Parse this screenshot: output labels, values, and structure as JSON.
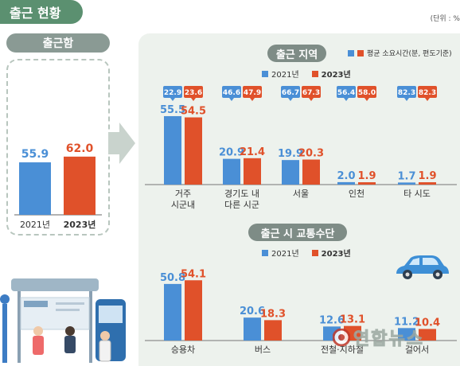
{
  "page": {
    "title": "출근 현황",
    "unit": "(단위 : %"
  },
  "colors": {
    "blue": "#4a8fd6",
    "orange": "#e0512a",
    "title_green": "#5b9070",
    "panel_bg": "#edf2ed",
    "pill_gray": "#8a9a94"
  },
  "chart_data": [
    {
      "type": "bar",
      "title": "출근함",
      "categories": [
        "2021년",
        "2023년"
      ],
      "values": [
        55.9,
        62.0
      ],
      "value_labels": [
        "55.9",
        "62.0"
      ]
    },
    {
      "type": "bar",
      "title": "출근 지역",
      "legend_note": "평균 소요시간(분, 편도기준)",
      "categories": [
        [
          "거주",
          "시군내"
        ],
        [
          "경기도 내",
          "다른 시군"
        ],
        [
          "서울"
        ],
        [
          "인천"
        ],
        [
          "타 시도"
        ]
      ],
      "series": [
        {
          "name": "2021년",
          "values": [
            55.5,
            20.9,
            19.9,
            2.0,
            1.7
          ],
          "labels": [
            "55.5",
            "20.9",
            "19.9",
            "2.0",
            "1.7"
          ],
          "avg_time": [
            "22.9",
            "46.6",
            "66.7",
            "56.4",
            "82.3"
          ]
        },
        {
          "name": "2023년",
          "values": [
            54.5,
            21.4,
            20.3,
            1.9,
            1.9
          ],
          "labels": [
            "54.5",
            "21.4",
            "20.3",
            "1.9",
            "1.9"
          ],
          "avg_time": [
            "23.6",
            "47.9",
            "67.3",
            "58.0",
            "82.3"
          ]
        }
      ]
    },
    {
      "type": "bar",
      "title": "출근 시 교통수단",
      "categories": [
        "승용차",
        "버스",
        "전철·지하철",
        "걸어서"
      ],
      "series": [
        {
          "name": "2021년",
          "values": [
            50.8,
            20.6,
            12.6,
            11.2
          ],
          "labels": [
            "50.8",
            "20.6",
            "12.6",
            "11.2"
          ]
        },
        {
          "name": "2023년",
          "values": [
            54.1,
            18.3,
            13.1,
            10.4
          ],
          "labels": [
            "54.1",
            "18.3",
            "13.1",
            "10.4"
          ]
        }
      ]
    }
  ],
  "watermark": "연합뉴스"
}
